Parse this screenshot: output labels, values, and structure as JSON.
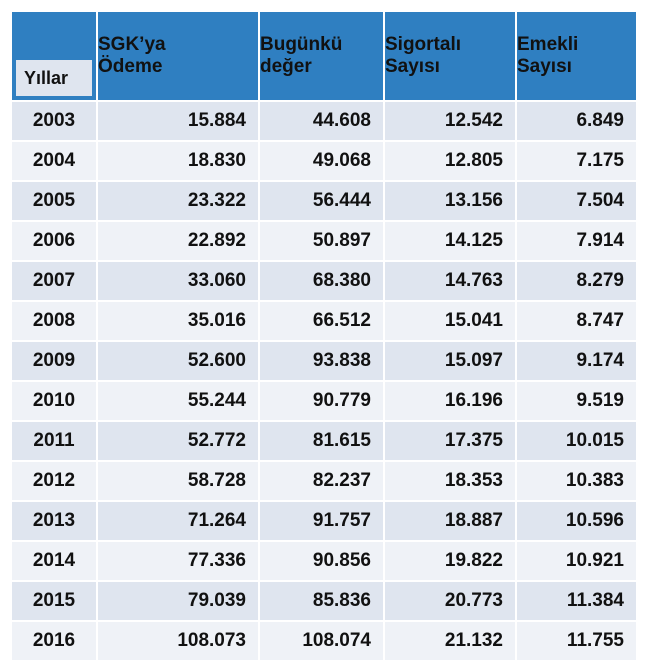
{
  "table": {
    "headers": {
      "years": "Yıllar",
      "sgk_line1": "SGK’ya",
      "sgk_line2": "Ödeme",
      "bugunku_line1": "Bugünkü",
      "bugunku_line2": "değer",
      "sigortali_line1": "Sigortalı",
      "sigortali_line2": "Sayısı",
      "emekli_line1": "Emekli",
      "emekli_line2": "Sayısı"
    },
    "rows": [
      {
        "year": "2003",
        "sgk": "15.884",
        "bugunku": "44.608",
        "sigortali": "12.542",
        "emekli": "6.849"
      },
      {
        "year": "2004",
        "sgk": "18.830",
        "bugunku": "49.068",
        "sigortali": "12.805",
        "emekli": "7.175"
      },
      {
        "year": "2005",
        "sgk": "23.322",
        "bugunku": "56.444",
        "sigortali": "13.156",
        "emekli": "7.504"
      },
      {
        "year": "2006",
        "sgk": "22.892",
        "bugunku": "50.897",
        "sigortali": "14.125",
        "emekli": "7.914"
      },
      {
        "year": "2007",
        "sgk": "33.060",
        "bugunku": "68.380",
        "sigortali": "14.763",
        "emekli": "8.279"
      },
      {
        "year": "2008",
        "sgk": "35.016",
        "bugunku": "66.512",
        "sigortali": "15.041",
        "emekli": "8.747"
      },
      {
        "year": "2009",
        "sgk": "52.600",
        "bugunku": "93.838",
        "sigortali": "15.097",
        "emekli": "9.174"
      },
      {
        "year": "2010",
        "sgk": "55.244",
        "bugunku": "90.779",
        "sigortali": "16.196",
        "emekli": "9.519"
      },
      {
        "year": "2011",
        "sgk": "52.772",
        "bugunku": "81.615",
        "sigortali": "17.375",
        "emekli": "10.015"
      },
      {
        "year": "2012",
        "sgk": "58.728",
        "bugunku": "82.237",
        "sigortali": "18.353",
        "emekli": "10.383"
      },
      {
        "year": "2013",
        "sgk": "71.264",
        "bugunku": "91.757",
        "sigortali": "18.887",
        "emekli": "10.596"
      },
      {
        "year": "2014",
        "sgk": "77.336",
        "bugunku": "90.856",
        "sigortali": "19.822",
        "emekli": "10.921"
      },
      {
        "year": "2015",
        "sgk": "79.039",
        "bugunku": "85.836",
        "sigortali": "20.773",
        "emekli": "11.384"
      },
      {
        "year": "2016",
        "sgk": "108.073",
        "bugunku": "108.074",
        "sigortali": "21.132",
        "emekli": "11.755"
      }
    ]
  },
  "colors": {
    "header": "#2f7fc1",
    "row_band_a": "#dfe5ef",
    "row_band_b": "#eff2f7"
  }
}
